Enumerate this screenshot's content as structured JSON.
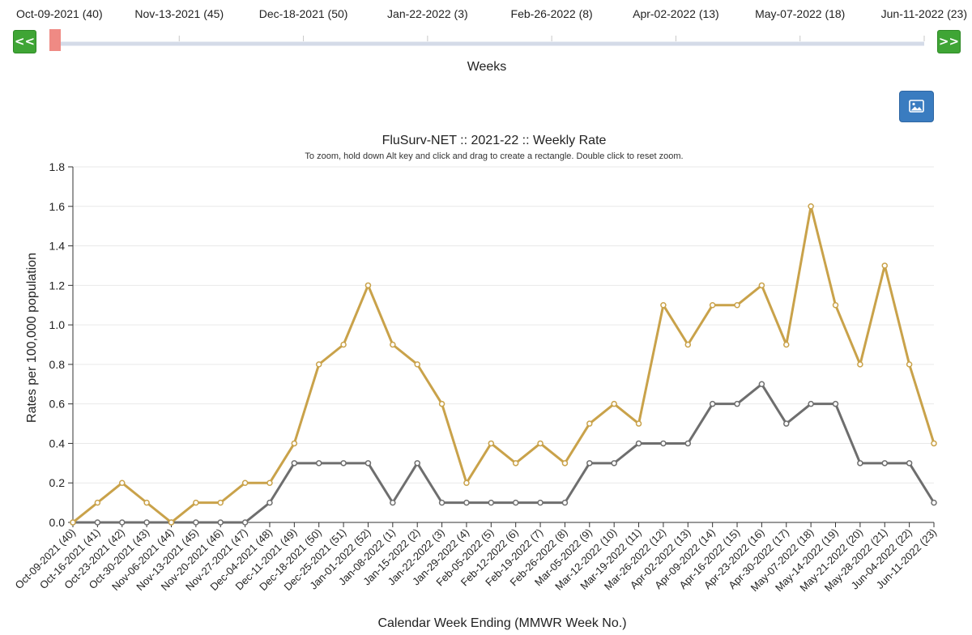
{
  "week_slider": {
    "prev_label": "<<",
    "next_label": ">>",
    "axis_label": "Weeks",
    "ticks": [
      "Oct-09-2021 (40)",
      "Nov-13-2021 (45)",
      "Dec-18-2021 (50)",
      "Jan-22-2022 (3)",
      "Feb-26-2022 (8)",
      "Apr-02-2022 (13)",
      "May-07-2022 (18)",
      "Jun-11-2022 (23)"
    ],
    "selected_index": 0
  },
  "toolbar": {
    "image_icon": "image-icon"
  },
  "chart_data": {
    "type": "line",
    "title": "FluSurv-NET :: 2021-22 :: Weekly Rate",
    "subtitle": "To zoom, hold down Alt key and click and drag to create a rectangle. Double click to reset zoom.",
    "xlabel": "Calendar Week Ending (MMWR Week No.)",
    "ylabel": "Rates per 100,000 population",
    "ylim": [
      0,
      1.8
    ],
    "yticks": [
      "0.0",
      "0.2",
      "0.4",
      "0.6",
      "0.8",
      "1.0",
      "1.2",
      "1.4",
      "1.6",
      "1.8"
    ],
    "grid": true,
    "categories": [
      "Oct-09-2021 (40)",
      "Oct-16-2021 (41)",
      "Oct-23-2021 (42)",
      "Oct-30-2021 (43)",
      "Nov-06-2021 (44)",
      "Nov-13-2021 (45)",
      "Nov-20-2021 (46)",
      "Nov-27-2021 (47)",
      "Dec-04-2021 (48)",
      "Dec-11-2021 (49)",
      "Dec-18-2021 (50)",
      "Dec-25-2021 (51)",
      "Jan-01-2022 (52)",
      "Jan-08-2022 (1)",
      "Jan-15-2022 (2)",
      "Jan-22-2022 (3)",
      "Jan-29-2022 (4)",
      "Feb-05-2022 (5)",
      "Feb-12-2022 (6)",
      "Feb-19-2022 (7)",
      "Feb-26-2022 (8)",
      "Mar-05-2022 (9)",
      "Mar-12-2022 (10)",
      "Mar-19-2022 (11)",
      "Mar-26-2022 (12)",
      "Apr-02-2022 (13)",
      "Apr-09-2022 (14)",
      "Apr-16-2022 (15)",
      "Apr-23-2022 (16)",
      "Apr-30-2022 (17)",
      "May-07-2022 (18)",
      "May-14-2022 (19)",
      "May-21-2022 (20)",
      "May-28-2022 (21)",
      "Jun-04-2022 (22)",
      "Jun-11-2022 (23)"
    ],
    "series": [
      {
        "color": "#c9a24a",
        "values": [
          0.0,
          0.1,
          0.2,
          0.1,
          0.0,
          0.1,
          0.1,
          0.2,
          0.2,
          0.4,
          0.8,
          0.9,
          1.2,
          0.9,
          0.8,
          0.6,
          0.2,
          0.4,
          0.3,
          0.4,
          0.3,
          0.5,
          0.6,
          0.5,
          1.1,
          0.9,
          1.1,
          1.1,
          1.2,
          0.9,
          1.6,
          1.1,
          0.8,
          1.3,
          0.8,
          0.4
        ]
      },
      {
        "color": "#6e6e6e",
        "values": [
          0.0,
          0.0,
          0.0,
          0.0,
          0.0,
          0.0,
          0.0,
          0.0,
          0.1,
          0.3,
          0.3,
          0.3,
          0.3,
          0.1,
          0.3,
          0.1,
          0.1,
          0.1,
          0.1,
          0.1,
          0.1,
          0.3,
          0.3,
          0.4,
          0.4,
          0.4,
          0.6,
          0.6,
          0.7,
          0.5,
          0.6,
          0.6,
          0.3,
          0.3,
          0.3,
          0.1
        ]
      }
    ]
  }
}
